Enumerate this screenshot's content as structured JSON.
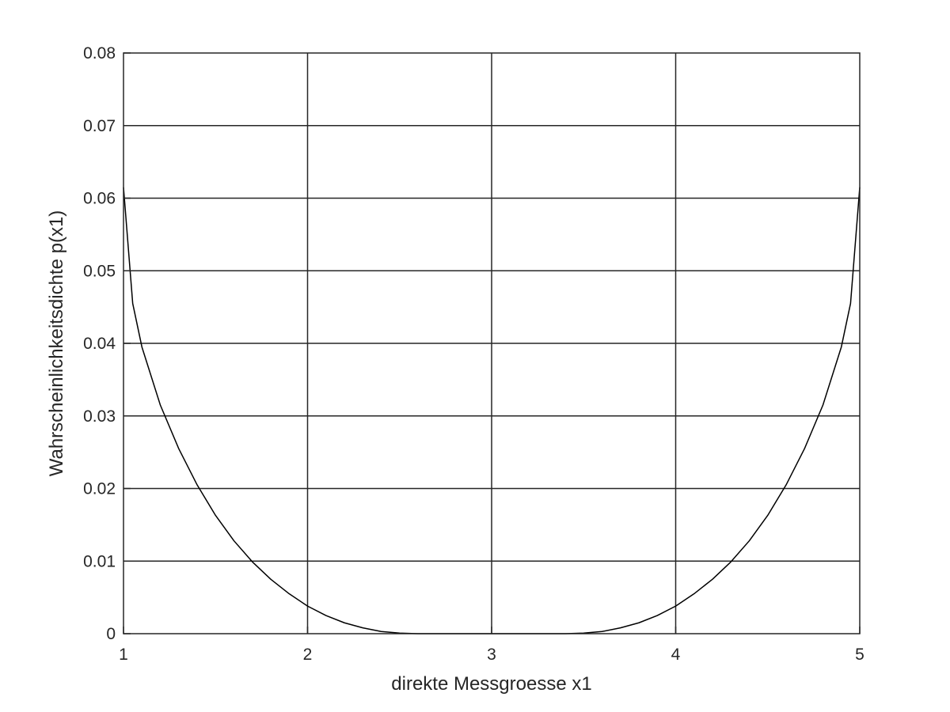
{
  "chart_data": {
    "type": "line",
    "title": "",
    "xlabel": "direkte Messgroesse x1",
    "ylabel": "Wahrscheinlichkeitsdichte p(x1)",
    "xlim": [
      1,
      5
    ],
    "ylim": [
      0,
      0.08
    ],
    "xticks": [
      1,
      2,
      3,
      4,
      5
    ],
    "xtick_labels": [
      "1",
      "2",
      "3",
      "4",
      "5"
    ],
    "yticks": [
      0,
      0.01,
      0.02,
      0.03,
      0.04,
      0.05,
      0.06,
      0.07,
      0.08
    ],
    "ytick_labels": [
      "0",
      "0.01",
      "0.02",
      "0.03",
      "0.04",
      "0.05",
      "0.06",
      "0.07",
      "0.08"
    ],
    "grid": true,
    "legend": "none",
    "series": [
      {
        "color": "#000000",
        "x": [
          1.0,
          1.05,
          1.1,
          1.2,
          1.3,
          1.4,
          1.5,
          1.6,
          1.7,
          1.8,
          1.9,
          2.0,
          2.1,
          2.2,
          2.3,
          2.4,
          2.5,
          2.6,
          2.7,
          2.8,
          2.9,
          3.0,
          3.1,
          3.2,
          3.3,
          3.4,
          3.5,
          3.6,
          3.7,
          3.8,
          3.9,
          4.0,
          4.1,
          4.2,
          4.3,
          4.4,
          4.5,
          4.6,
          4.7,
          4.8,
          4.9,
          4.95,
          5.0
        ],
        "y": [
          0.0615,
          0.0455,
          0.0395,
          0.0315,
          0.0255,
          0.0205,
          0.0163,
          0.0128,
          0.0099,
          0.0075,
          0.0055,
          0.0038,
          0.0025,
          0.0015,
          0.0008,
          0.0003,
          8e-05,
          0.0,
          0.0,
          0.0,
          0.0,
          0.0,
          0.0,
          0.0,
          0.0,
          0.0,
          8e-05,
          0.0003,
          0.0008,
          0.0015,
          0.0025,
          0.0038,
          0.0055,
          0.0075,
          0.0099,
          0.0128,
          0.0163,
          0.0205,
          0.0255,
          0.0315,
          0.0395,
          0.0455,
          0.0615
        ]
      }
    ]
  }
}
